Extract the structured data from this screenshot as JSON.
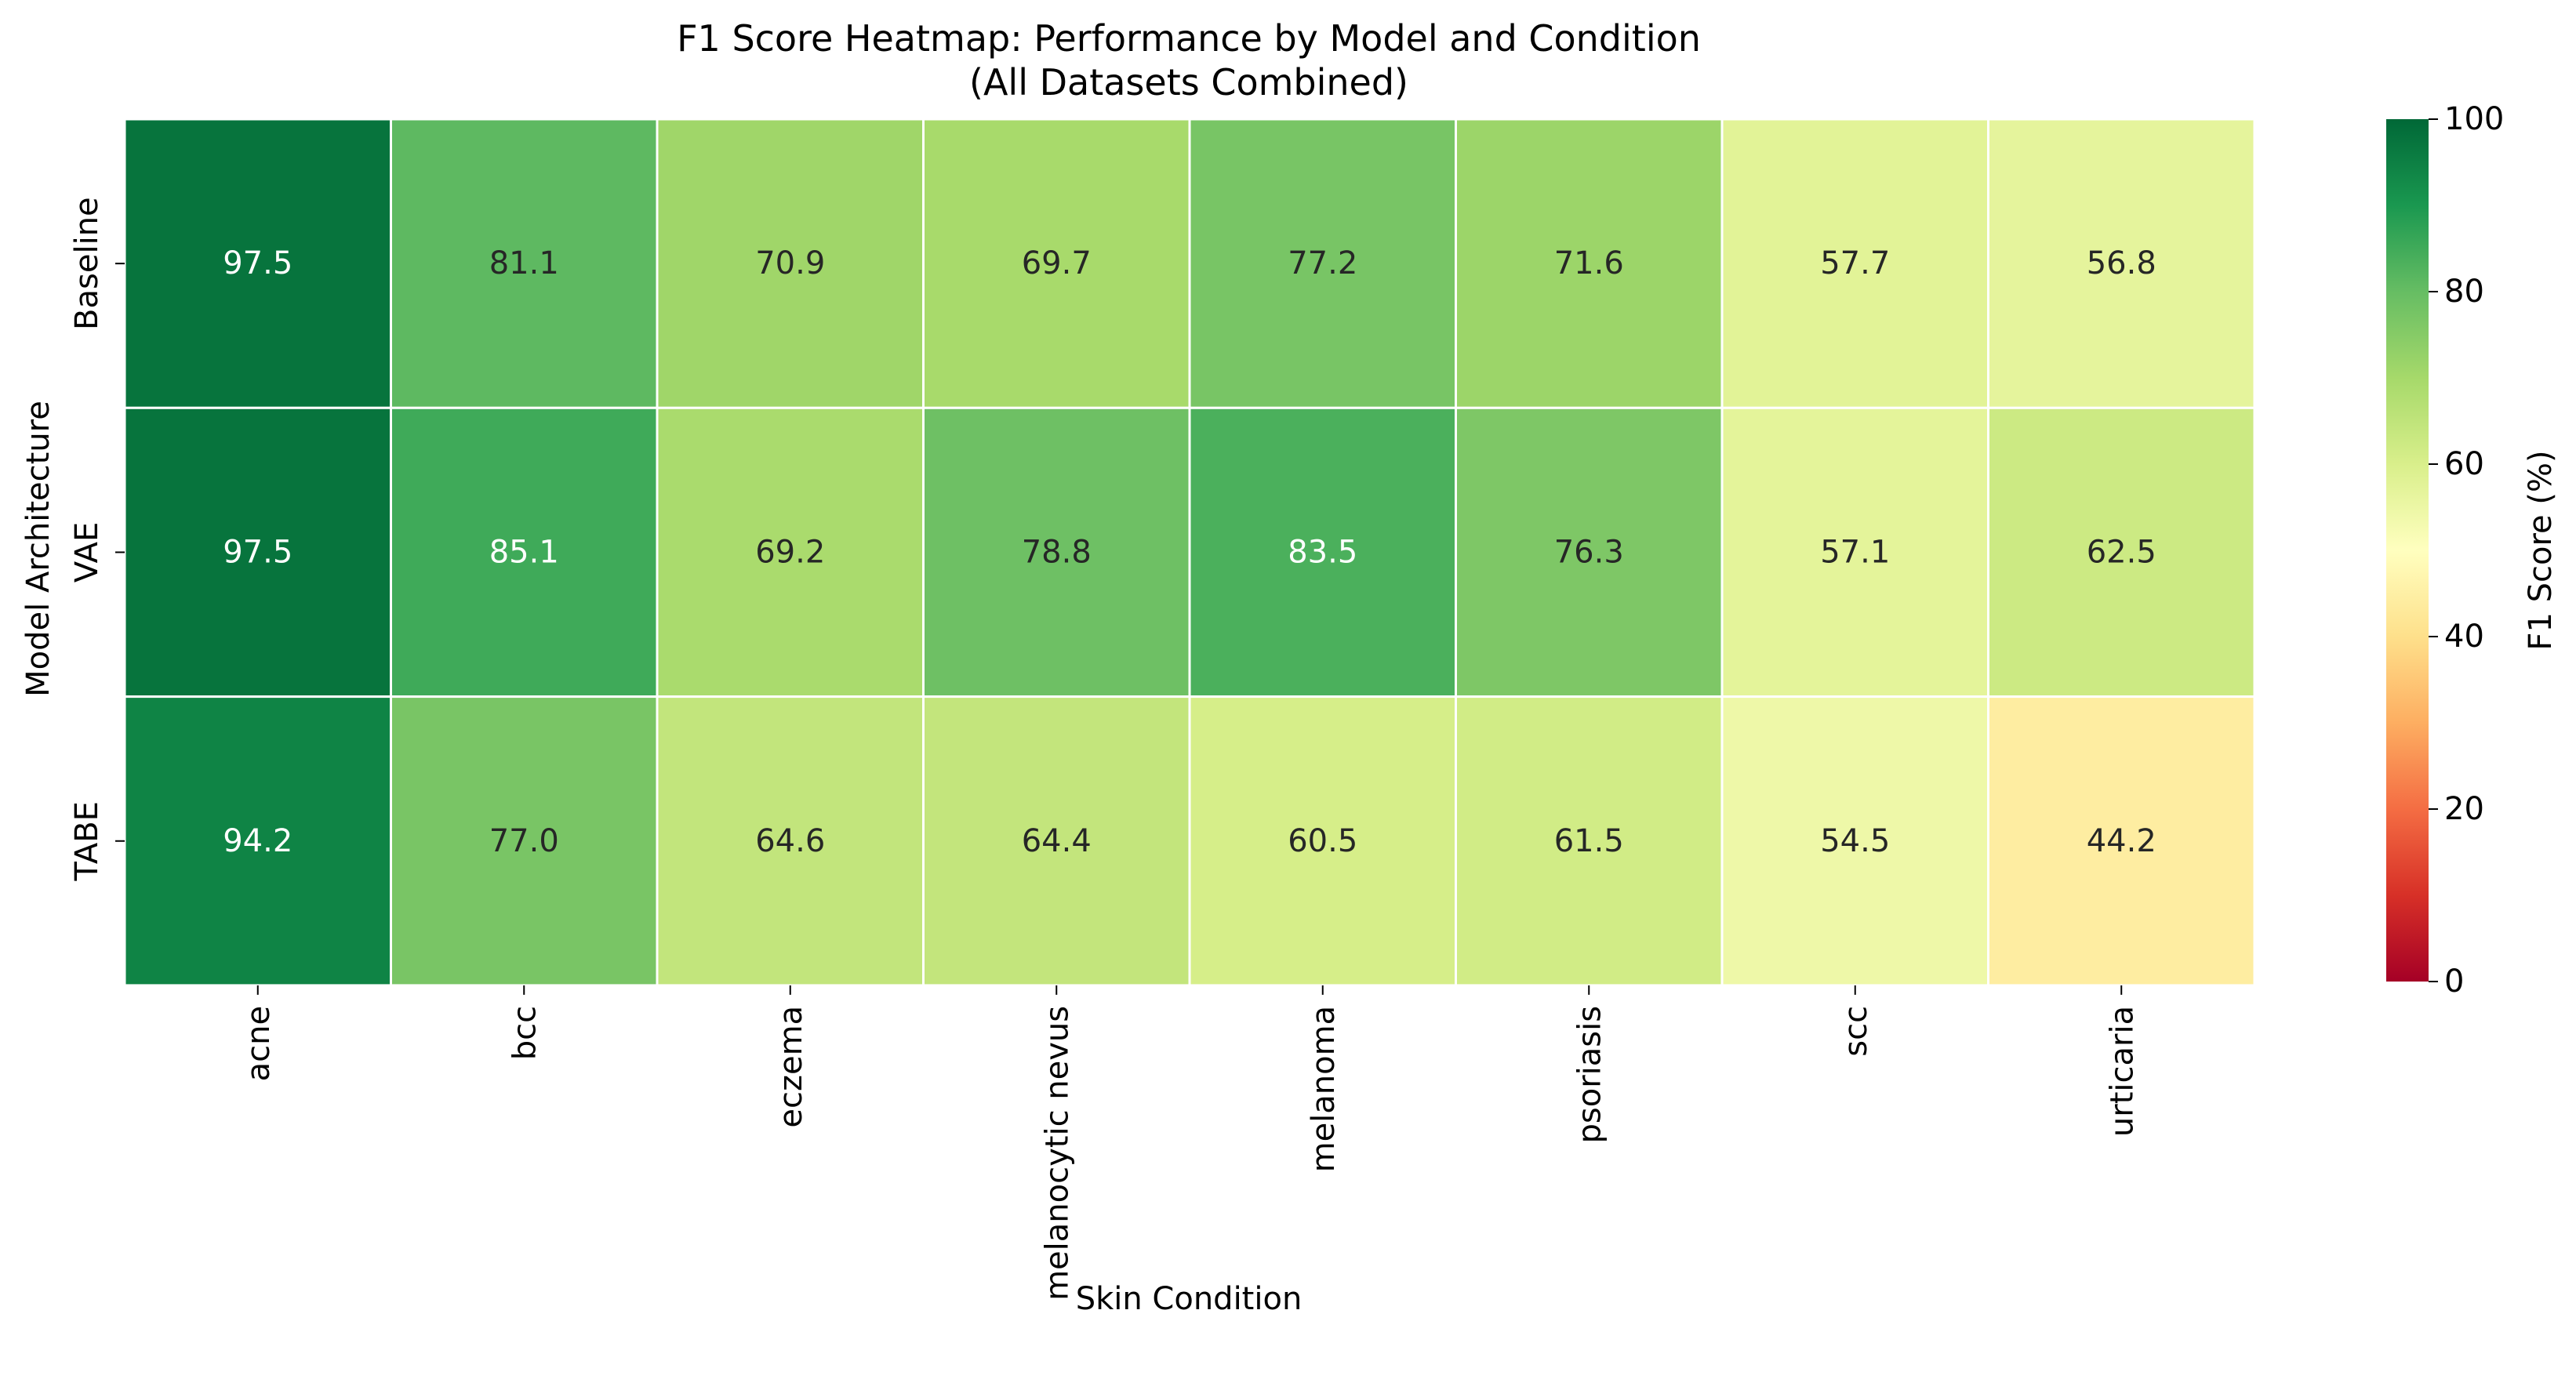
{
  "chart_data": {
    "type": "heatmap",
    "title": "F1 Score Heatmap: Performance by Model and Condition",
    "subtitle": "(All Datasets Combined)",
    "xlabel": "Skin Condition",
    "ylabel": "Model Architecture",
    "rows": [
      "Baseline",
      "VAE",
      "TABE"
    ],
    "columns": [
      "acne",
      "bcc",
      "eczema",
      "melanocytic nevus",
      "melanoma",
      "psoriasis",
      "scc",
      "urticaria"
    ],
    "values": [
      [
        97.5,
        81.1,
        70.9,
        69.7,
        77.2,
        71.6,
        57.7,
        56.8
      ],
      [
        97.5,
        85.1,
        69.2,
        78.8,
        83.5,
        76.3,
        57.1,
        62.5
      ],
      [
        94.2,
        77.0,
        64.6,
        64.4,
        60.5,
        61.5,
        54.5,
        44.2
      ]
    ],
    "value_format": "1 decimal",
    "colormap": "RdYlGn",
    "vmin": 0,
    "vmax": 100,
    "colorbar": {
      "label": "F1 Score (%)",
      "ticks": [
        0,
        20,
        40,
        60,
        80,
        100
      ]
    },
    "colors": {
      "low": "#a50026",
      "high": "#006837",
      "cell_border": "#ffffff"
    }
  }
}
